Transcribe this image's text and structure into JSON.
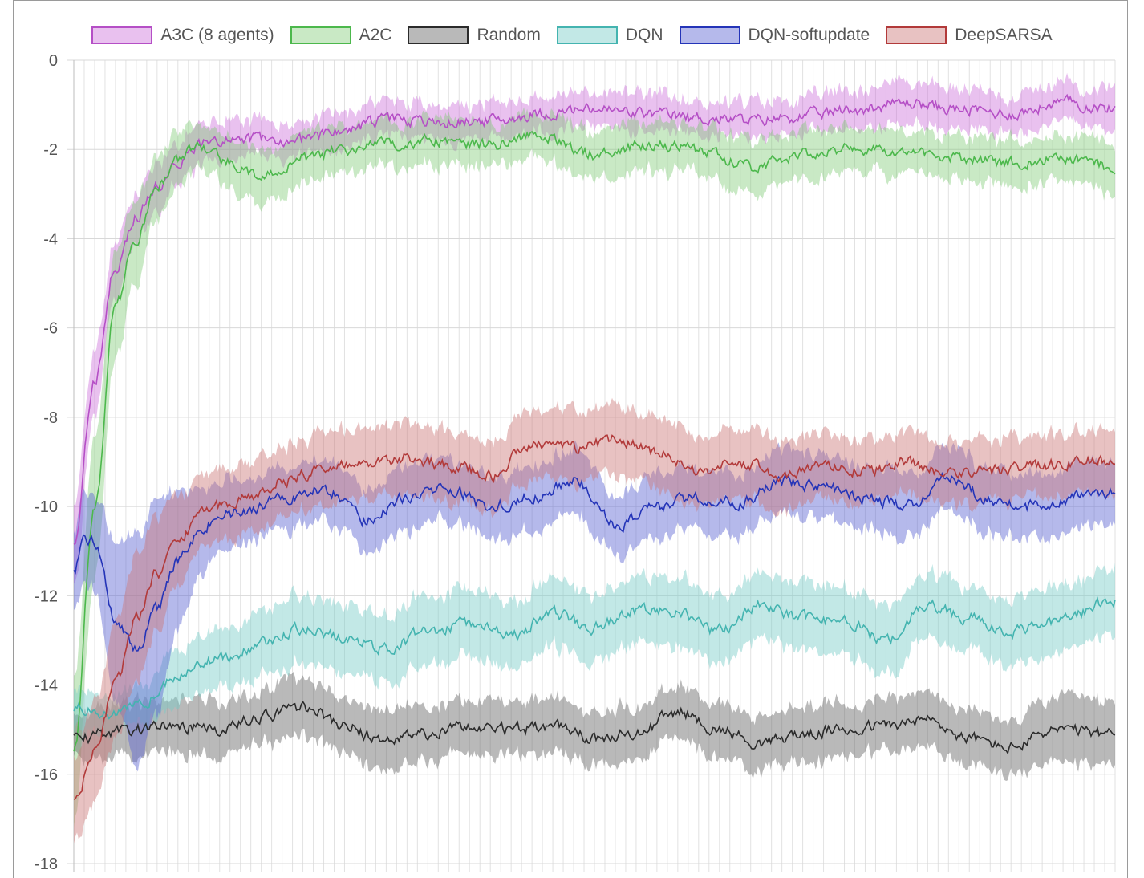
{
  "chart_data": {
    "type": "line",
    "title": "",
    "xlabel": "",
    "ylabel": "",
    "ylim": [
      -18,
      0
    ],
    "yticks": [
      0,
      -2,
      -4,
      -6,
      -8,
      -10,
      -12,
      -14,
      -16,
      -18
    ],
    "xlim": [
      0,
      1
    ],
    "grid": true,
    "legend_position": "top",
    "series": [
      {
        "name": "A3C (8 agents)",
        "color": "#b54fc6",
        "fill": "rgba(200,100,215,0.40)",
        "x": [
          0.0,
          0.02,
          0.04,
          0.06,
          0.08,
          0.1,
          0.12,
          0.15,
          0.18,
          0.22,
          0.26,
          0.3,
          0.35,
          0.4,
          0.45,
          0.5,
          0.55,
          0.6,
          0.65,
          0.7,
          0.75,
          0.8,
          0.85,
          0.9,
          0.95,
          1.0
        ],
        "y": [
          -10.8,
          -7.2,
          -4.6,
          -3.5,
          -2.8,
          -2.3,
          -1.9,
          -1.75,
          -1.75,
          -1.8,
          -1.55,
          -1.35,
          -1.4,
          -1.35,
          -1.2,
          -1.1,
          -1.2,
          -1.3,
          -1.35,
          -1.25,
          -1.1,
          -0.95,
          -1.1,
          -1.2,
          -0.95,
          -1.1
        ],
        "err": [
          0.9,
          0.7,
          0.6,
          0.55,
          0.5,
          0.45,
          0.45,
          0.45,
          0.4,
          0.4,
          0.4,
          0.4,
          0.4,
          0.4,
          0.4,
          0.4,
          0.4,
          0.4,
          0.4,
          0.4,
          0.45,
          0.5,
          0.45,
          0.4,
          0.45,
          0.45
        ]
      },
      {
        "name": "A2C",
        "color": "#4cb84c",
        "fill": "rgba(120,200,110,0.40)",
        "x": [
          0.0,
          0.02,
          0.04,
          0.06,
          0.08,
          0.1,
          0.12,
          0.15,
          0.18,
          0.22,
          0.26,
          0.3,
          0.35,
          0.4,
          0.45,
          0.5,
          0.55,
          0.6,
          0.65,
          0.7,
          0.75,
          0.8,
          0.85,
          0.9,
          0.95,
          1.0
        ],
        "y": [
          -15.5,
          -10.0,
          -5.5,
          -4.0,
          -2.8,
          -2.2,
          -1.9,
          -2.3,
          -2.6,
          -2.2,
          -2.0,
          -1.85,
          -1.8,
          -1.9,
          -1.7,
          -2.1,
          -1.9,
          -2.0,
          -2.4,
          -2.1,
          -2.0,
          -2.1,
          -2.2,
          -2.3,
          -2.2,
          -2.4
        ],
        "err": [
          1.6,
          1.5,
          1.2,
          0.9,
          0.7,
          0.6,
          0.5,
          0.6,
          0.6,
          0.55,
          0.5,
          0.5,
          0.5,
          0.5,
          0.5,
          0.55,
          0.55,
          0.55,
          0.6,
          0.55,
          0.5,
          0.5,
          0.5,
          0.5,
          0.5,
          0.6
        ]
      },
      {
        "name": "Random",
        "color": "#2b2b2b",
        "fill": "rgba(100,100,100,0.45)",
        "x": [
          0.0,
          0.03,
          0.06,
          0.1,
          0.14,
          0.18,
          0.22,
          0.26,
          0.3,
          0.34,
          0.38,
          0.42,
          0.46,
          0.5,
          0.54,
          0.58,
          0.62,
          0.66,
          0.7,
          0.74,
          0.78,
          0.82,
          0.86,
          0.9,
          0.94,
          1.0
        ],
        "y": [
          -15.2,
          -15.1,
          -15.0,
          -14.9,
          -15.0,
          -14.7,
          -14.5,
          -14.9,
          -15.3,
          -15.1,
          -14.9,
          -15.0,
          -14.9,
          -15.2,
          -15.1,
          -14.6,
          -15.0,
          -15.3,
          -15.1,
          -15.0,
          -14.9,
          -14.8,
          -15.2,
          -15.4,
          -15.0,
          -15.1
        ],
        "err": [
          0.5,
          0.6,
          0.6,
          0.6,
          0.6,
          0.6,
          0.65,
          0.65,
          0.7,
          0.6,
          0.6,
          0.6,
          0.6,
          0.6,
          0.6,
          0.6,
          0.6,
          0.6,
          0.6,
          0.6,
          0.6,
          0.6,
          0.6,
          0.6,
          0.7,
          0.7
        ]
      },
      {
        "name": "DQN",
        "color": "#44b4b0",
        "fill": "rgba(120,205,200,0.45)",
        "x": [
          0.0,
          0.03,
          0.06,
          0.1,
          0.14,
          0.18,
          0.22,
          0.26,
          0.3,
          0.34,
          0.38,
          0.42,
          0.46,
          0.5,
          0.54,
          0.58,
          0.62,
          0.66,
          0.7,
          0.74,
          0.78,
          0.82,
          0.86,
          0.9,
          0.94,
          1.0
        ],
        "y": [
          -14.5,
          -14.6,
          -14.5,
          -13.8,
          -13.4,
          -13.1,
          -12.7,
          -12.9,
          -13.2,
          -12.8,
          -12.6,
          -12.9,
          -12.4,
          -12.7,
          -12.3,
          -12.4,
          -12.8,
          -12.2,
          -12.5,
          -12.6,
          -13.0,
          -12.2,
          -12.5,
          -12.8,
          -12.6,
          -12.1
        ],
        "err": [
          0.4,
          0.4,
          0.4,
          0.6,
          0.7,
          0.75,
          0.75,
          0.75,
          0.75,
          0.75,
          0.75,
          0.75,
          0.75,
          0.75,
          0.75,
          0.75,
          0.75,
          0.75,
          0.75,
          0.75,
          0.75,
          0.75,
          0.75,
          0.75,
          0.75,
          0.75
        ]
      },
      {
        "name": "DQN-softupdate",
        "color": "#2434b8",
        "fill": "rgba(90,100,210,0.45)",
        "x": [
          0.0,
          0.01,
          0.02,
          0.04,
          0.06,
          0.08,
          0.1,
          0.12,
          0.14,
          0.17,
          0.2,
          0.24,
          0.28,
          0.32,
          0.36,
          0.4,
          0.44,
          0.48,
          0.52,
          0.56,
          0.6,
          0.64,
          0.68,
          0.72,
          0.76,
          0.8,
          0.84,
          0.88,
          0.92,
          0.96,
          1.0
        ],
        "y": [
          -11.4,
          -10.7,
          -10.8,
          -12.5,
          -13.2,
          -12.3,
          -11.2,
          -10.6,
          -10.2,
          -10.1,
          -9.8,
          -9.6,
          -10.3,
          -9.8,
          -9.6,
          -10.0,
          -9.8,
          -9.4,
          -10.4,
          -10.0,
          -9.8,
          -9.9,
          -9.4,
          -9.6,
          -9.8,
          -10.0,
          -9.3,
          -9.9,
          -10.0,
          -9.8,
          -9.7
        ],
        "err": [
          0.9,
          1.0,
          1.1,
          1.8,
          2.6,
          2.4,
          1.6,
          1.0,
          0.8,
          0.7,
          0.7,
          0.7,
          0.7,
          0.7,
          0.7,
          0.7,
          0.7,
          0.7,
          0.7,
          0.7,
          0.7,
          0.7,
          0.7,
          0.7,
          0.7,
          0.7,
          0.7,
          0.7,
          0.7,
          0.7,
          0.7
        ]
      },
      {
        "name": "DeepSARSA",
        "color": "#b23a3a",
        "fill": "rgba(205,120,120,0.45)",
        "x": [
          0.0,
          0.02,
          0.04,
          0.06,
          0.08,
          0.1,
          0.12,
          0.14,
          0.17,
          0.2,
          0.24,
          0.28,
          0.32,
          0.36,
          0.4,
          0.44,
          0.48,
          0.52,
          0.56,
          0.6,
          0.64,
          0.68,
          0.72,
          0.76,
          0.8,
          0.84,
          0.88,
          0.92,
          0.96,
          1.0
        ],
        "y": [
          -16.6,
          -15.5,
          -14.0,
          -12.5,
          -11.5,
          -10.8,
          -10.2,
          -10.0,
          -9.8,
          -9.4,
          -9.2,
          -9.0,
          -8.9,
          -9.1,
          -9.3,
          -8.6,
          -8.7,
          -8.5,
          -8.8,
          -9.2,
          -9.0,
          -9.3,
          -9.1,
          -9.2,
          -9.0,
          -9.3,
          -9.2,
          -9.1,
          -9.0,
          -9.0
        ],
        "err": [
          0.9,
          1.1,
          1.3,
          1.4,
          1.3,
          1.0,
          0.8,
          0.8,
          0.8,
          0.8,
          0.8,
          0.8,
          0.8,
          0.8,
          0.8,
          0.8,
          0.8,
          0.8,
          0.8,
          0.8,
          0.8,
          0.8,
          0.7,
          0.7,
          0.7,
          0.7,
          0.7,
          0.7,
          0.7,
          0.7
        ]
      }
    ]
  }
}
